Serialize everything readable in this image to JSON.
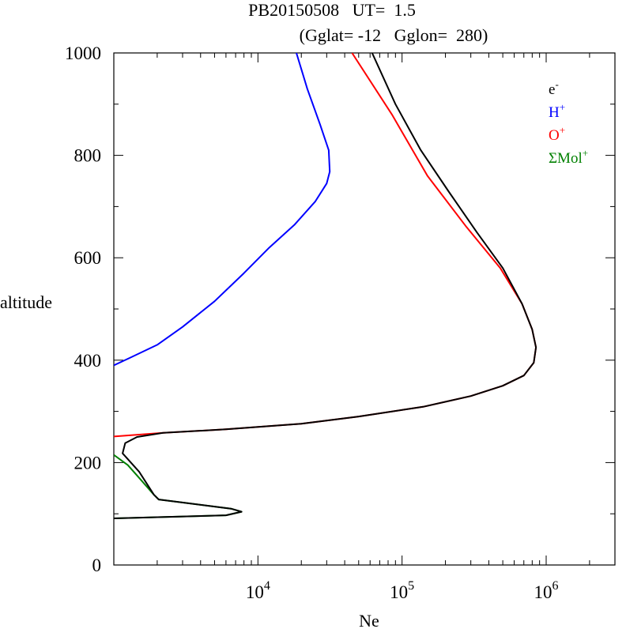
{
  "chart_data": {
    "type": "line",
    "title": "PB20150508   UT=  1.5",
    "subtitle": "(Gglat= -12   Gglon=  280)",
    "xlabel": "Ne",
    "ylabel": "altitude",
    "xscale": "log",
    "xlim": [
      1000,
      3000000
    ],
    "ylim": [
      0,
      1000
    ],
    "x_ticks": [
      {
        "value": 10000,
        "base": "10",
        "exp": "4"
      },
      {
        "value": 100000,
        "base": "10",
        "exp": "5"
      },
      {
        "value": 1000000,
        "base": "10",
        "exp": "6"
      }
    ],
    "y_ticks": [
      0,
      200,
      400,
      600,
      800,
      1000
    ],
    "grid": false,
    "legend_position": "top-right",
    "series": [
      {
        "name": "e-",
        "label_base": "e",
        "label_sup": "-",
        "color": "#000000",
        "points": [
          {
            "x": 1000,
            "y": 91
          },
          {
            "x": 6000,
            "y": 97
          },
          {
            "x": 7700,
            "y": 104
          },
          {
            "x": 6500,
            "y": 110
          },
          {
            "x": 2050,
            "y": 128
          },
          {
            "x": 1900,
            "y": 137
          },
          {
            "x": 1500,
            "y": 182
          },
          {
            "x": 1150,
            "y": 218
          },
          {
            "x": 1200,
            "y": 238
          },
          {
            "x": 1450,
            "y": 250
          },
          {
            "x": 2200,
            "y": 258
          },
          {
            "x": 6000,
            "y": 265
          },
          {
            "x": 20000,
            "y": 276
          },
          {
            "x": 50000,
            "y": 290
          },
          {
            "x": 140000,
            "y": 309
          },
          {
            "x": 300000,
            "y": 330
          },
          {
            "x": 500000,
            "y": 350
          },
          {
            "x": 700000,
            "y": 370
          },
          {
            "x": 820000,
            "y": 395
          },
          {
            "x": 850000,
            "y": 425
          },
          {
            "x": 800000,
            "y": 460
          },
          {
            "x": 680000,
            "y": 510
          },
          {
            "x": 500000,
            "y": 580
          },
          {
            "x": 330000,
            "y": 650
          },
          {
            "x": 210000,
            "y": 730
          },
          {
            "x": 135000,
            "y": 810
          },
          {
            "x": 90000,
            "y": 900
          },
          {
            "x": 62000,
            "y": 1000
          }
        ]
      },
      {
        "name": "H+",
        "label_base": "H",
        "label_sup": "+",
        "color": "#0000ff",
        "points": [
          {
            "x": 1000,
            "y": 390
          },
          {
            "x": 1300,
            "y": 405
          },
          {
            "x": 2000,
            "y": 430
          },
          {
            "x": 3000,
            "y": 465
          },
          {
            "x": 5000,
            "y": 515
          },
          {
            "x": 8000,
            "y": 570
          },
          {
            "x": 12000,
            "y": 620
          },
          {
            "x": 18000,
            "y": 665
          },
          {
            "x": 25000,
            "y": 710
          },
          {
            "x": 30000,
            "y": 745
          },
          {
            "x": 31500,
            "y": 768
          },
          {
            "x": 31000,
            "y": 810
          },
          {
            "x": 27000,
            "y": 860
          },
          {
            "x": 22000,
            "y": 930
          },
          {
            "x": 18500,
            "y": 1000
          }
        ]
      },
      {
        "name": "O+",
        "label_base": "O",
        "label_sup": "+",
        "color": "#ff0000",
        "points": [
          {
            "x": 1000,
            "y": 251
          },
          {
            "x": 2200,
            "y": 258
          },
          {
            "x": 6000,
            "y": 265
          },
          {
            "x": 20000,
            "y": 276
          },
          {
            "x": 50000,
            "y": 290
          },
          {
            "x": 140000,
            "y": 309
          },
          {
            "x": 300000,
            "y": 330
          },
          {
            "x": 500000,
            "y": 350
          },
          {
            "x": 700000,
            "y": 370
          },
          {
            "x": 820000,
            "y": 395
          },
          {
            "x": 850000,
            "y": 425
          },
          {
            "x": 800000,
            "y": 460
          },
          {
            "x": 680000,
            "y": 510
          },
          {
            "x": 480000,
            "y": 580
          },
          {
            "x": 280000,
            "y": 660
          },
          {
            "x": 150000,
            "y": 760
          },
          {
            "x": 85000,
            "y": 880
          },
          {
            "x": 45000,
            "y": 1000
          }
        ]
      },
      {
        "name": "ΣMol+",
        "label_base": "ΣMol",
        "label_sup": "+",
        "color": "#008000",
        "points": [
          {
            "x": 1000,
            "y": 215
          },
          {
            "x": 1250,
            "y": 195
          },
          {
            "x": 1500,
            "y": 170
          },
          {
            "x": 1900,
            "y": 137
          },
          {
            "x": 2050,
            "y": 128
          },
          {
            "x": 6500,
            "y": 110
          },
          {
            "x": 7700,
            "y": 104
          },
          {
            "x": 6000,
            "y": 97
          },
          {
            "x": 1000,
            "y": 91
          }
        ]
      }
    ]
  }
}
